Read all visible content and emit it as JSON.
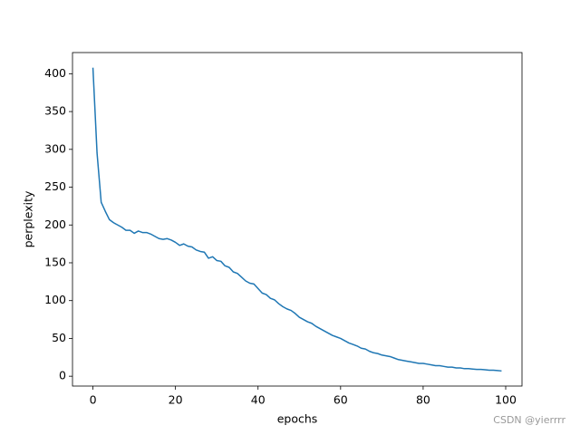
{
  "chart_data": {
    "type": "line",
    "xlabel": "epochs",
    "ylabel": "perplexity",
    "watermark": "CSDN @yierrrr",
    "x": [
      0,
      1,
      2,
      3,
      4,
      5,
      6,
      7,
      8,
      9,
      10,
      11,
      12,
      13,
      14,
      15,
      16,
      17,
      18,
      19,
      20,
      21,
      22,
      23,
      24,
      25,
      26,
      27,
      28,
      29,
      30,
      31,
      32,
      33,
      34,
      35,
      36,
      37,
      38,
      39,
      40,
      41,
      42,
      43,
      44,
      45,
      46,
      47,
      48,
      49,
      50,
      51,
      52,
      53,
      54,
      55,
      56,
      57,
      58,
      59,
      60,
      61,
      62,
      63,
      64,
      65,
      66,
      67,
      68,
      69,
      70,
      71,
      72,
      73,
      74,
      75,
      76,
      77,
      78,
      79,
      80,
      81,
      82,
      83,
      84,
      85,
      86,
      87,
      88,
      89,
      90,
      91,
      92,
      93,
      94,
      95,
      96,
      97,
      98,
      99
    ],
    "series": [
      {
        "color": "#1f77b4",
        "values": [
          408,
          295,
          230,
          218,
          207,
          203,
          200,
          197,
          193,
          193,
          189,
          192,
          190,
          190,
          188,
          185,
          182,
          181,
          182,
          180,
          177,
          173,
          175,
          172,
          171,
          167,
          165,
          164,
          156,
          158,
          153,
          152,
          146,
          144,
          138,
          136,
          131,
          126,
          123,
          122,
          116,
          110,
          108,
          103,
          101,
          96,
          92,
          89,
          87,
          83,
          78,
          75,
          72,
          70,
          66,
          63,
          60,
          57,
          54,
          52,
          50,
          47,
          44,
          42,
          40,
          37,
          36,
          33,
          31,
          30,
          28,
          27,
          26,
          24,
          22,
          21,
          20,
          19,
          18,
          17,
          17,
          16,
          15,
          14,
          14,
          13,
          12,
          12,
          11,
          11,
          10,
          10,
          9.5,
          9,
          9,
          8.5,
          8,
          8,
          7.5,
          7
        ]
      }
    ],
    "xlim": [
      -4.95,
      103.95
    ],
    "xticks": [
      0,
      20,
      40,
      60,
      80,
      100
    ],
    "ylim": [
      -13,
      428
    ],
    "yticks": [
      0,
      50,
      100,
      150,
      200,
      250,
      300,
      350,
      400
    ]
  }
}
